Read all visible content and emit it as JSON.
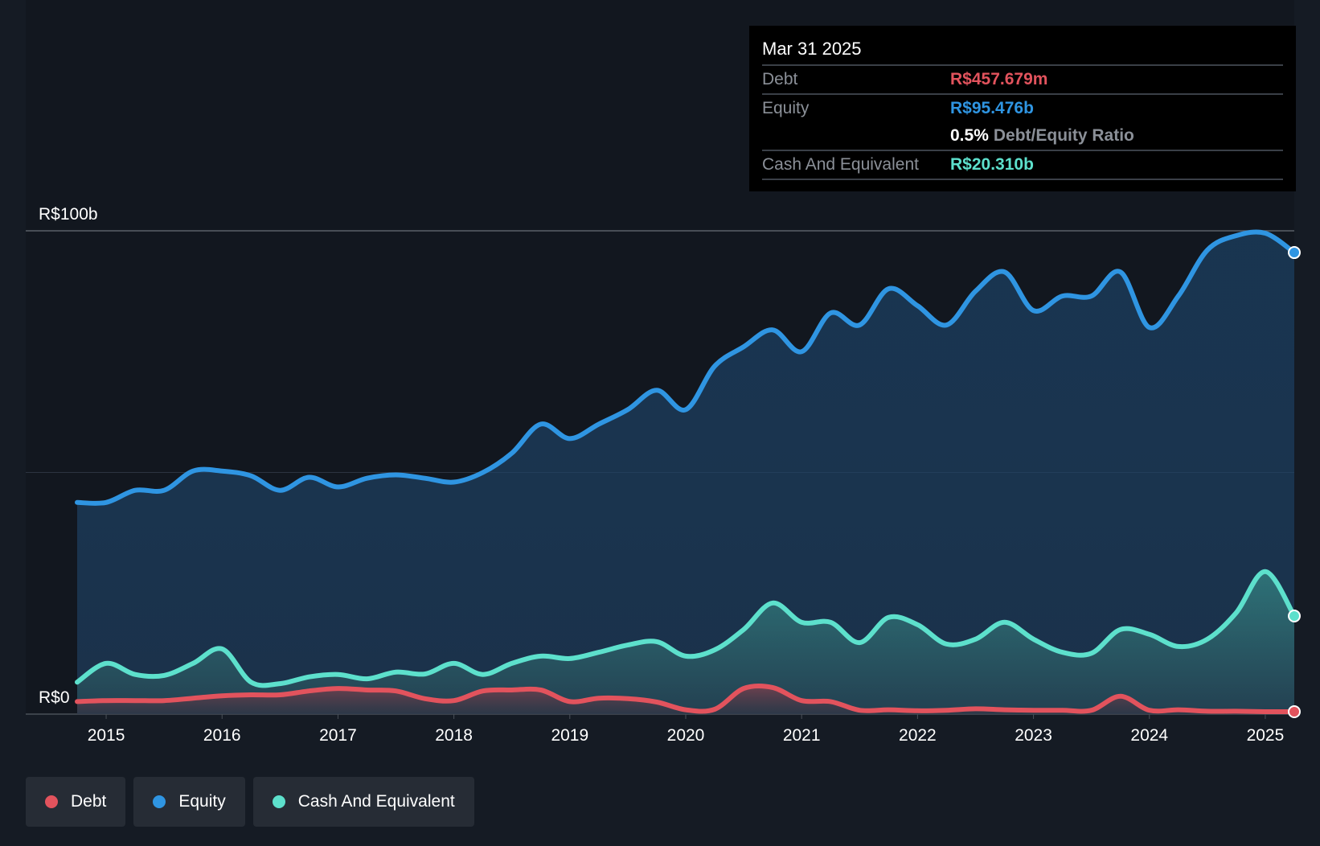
{
  "chart_data": {
    "type": "area",
    "title": "",
    "xlabel": "",
    "ylabel": "",
    "ylim": [
      0,
      100
    ],
    "y_ticks": [
      {
        "value": 0,
        "label": "R$0"
      },
      {
        "value": 50,
        "label": ""
      },
      {
        "value": 100,
        "label": "R$100b"
      }
    ],
    "x_range": [
      2014.75,
      2025.25
    ],
    "x_ticks": [
      2015,
      2016,
      2017,
      2018,
      2019,
      2020,
      2021,
      2022,
      2023,
      2024,
      2025
    ],
    "series": [
      {
        "name": "Equity",
        "color": "#2f95e2",
        "x": [
          2014.75,
          2015.0,
          2015.25,
          2015.5,
          2015.75,
          2016.0,
          2016.25,
          2016.5,
          2016.75,
          2017.0,
          2017.25,
          2017.5,
          2017.75,
          2018.0,
          2018.25,
          2018.5,
          2018.75,
          2019.0,
          2019.25,
          2019.5,
          2019.75,
          2020.0,
          2020.25,
          2020.5,
          2020.75,
          2021.0,
          2021.25,
          2021.5,
          2021.75,
          2022.0,
          2022.25,
          2022.5,
          2022.75,
          2023.0,
          2023.25,
          2023.5,
          2023.75,
          2024.0,
          2024.25,
          2024.5,
          2024.75,
          2025.0,
          2025.25
        ],
        "values": [
          43.8,
          43.8,
          46.3,
          46.3,
          50.3,
          50.3,
          49.3,
          46.3,
          49.0,
          47.0,
          48.8,
          49.5,
          48.8,
          48.0,
          50.0,
          54.0,
          60.0,
          57.0,
          60.0,
          63.0,
          67.0,
          63.0,
          72.0,
          76.0,
          79.5,
          75.0,
          83.0,
          80.5,
          88.0,
          84.5,
          80.5,
          87.5,
          91.5,
          83.5,
          86.5,
          86.5,
          91.5,
          80.0,
          86.5,
          96.0,
          99.0,
          99.5,
          95.5
        ]
      },
      {
        "name": "Cash And Equivalent",
        "color": "#5de0cc",
        "x": [
          2014.75,
          2015.0,
          2015.25,
          2015.5,
          2015.75,
          2016.0,
          2016.25,
          2016.5,
          2016.75,
          2017.0,
          2017.25,
          2017.5,
          2017.75,
          2018.0,
          2018.25,
          2018.5,
          2018.75,
          2019.0,
          2019.25,
          2019.5,
          2019.75,
          2020.0,
          2020.25,
          2020.5,
          2020.75,
          2021.0,
          2021.25,
          2021.5,
          2021.75,
          2022.0,
          2022.25,
          2022.5,
          2022.75,
          2023.0,
          2023.25,
          2023.5,
          2023.75,
          2024.0,
          2024.25,
          2024.5,
          2024.75,
          2025.0,
          2025.25
        ],
        "values": [
          6.6,
          10.5,
          8.2,
          8.0,
          10.5,
          13.5,
          6.6,
          6.3,
          7.7,
          8.2,
          7.3,
          8.7,
          8.3,
          10.5,
          8.2,
          10.5,
          12.0,
          11.5,
          12.8,
          14.3,
          15.0,
          12.0,
          13.3,
          17.5,
          23.0,
          19.0,
          19.0,
          14.8,
          20.0,
          18.5,
          14.5,
          15.5,
          19.0,
          15.5,
          12.8,
          12.6,
          17.5,
          16.5,
          14.0,
          15.5,
          21.0,
          29.5,
          20.3
        ]
      },
      {
        "name": "Debt",
        "color": "#e2535d",
        "x": [
          2014.75,
          2015.0,
          2015.25,
          2015.5,
          2015.75,
          2016.0,
          2016.25,
          2016.5,
          2016.75,
          2017.0,
          2017.25,
          2017.5,
          2017.75,
          2018.0,
          2018.25,
          2018.5,
          2018.75,
          2019.0,
          2019.25,
          2019.5,
          2019.75,
          2020.0,
          2020.25,
          2020.5,
          2020.75,
          2021.0,
          2021.25,
          2021.5,
          2021.75,
          2022.0,
          2022.25,
          2022.5,
          2022.75,
          2023.0,
          2023.25,
          2023.5,
          2023.75,
          2024.0,
          2024.25,
          2024.5,
          2024.75,
          2025.0,
          2025.25
        ],
        "values": [
          2.6,
          2.8,
          2.8,
          2.8,
          3.3,
          3.8,
          4.0,
          4.0,
          4.8,
          5.3,
          5.0,
          4.8,
          3.2,
          2.8,
          4.8,
          5.0,
          5.0,
          2.6,
          3.3,
          3.2,
          2.5,
          0.9,
          1.0,
          5.3,
          5.5,
          2.8,
          2.6,
          0.8,
          0.9,
          0.7,
          0.8,
          1.1,
          0.9,
          0.8,
          0.8,
          0.8,
          3.7,
          0.8,
          0.9,
          0.6,
          0.6,
          0.5,
          0.5
        ]
      }
    ],
    "tooltip": {
      "date": "Mar 31 2025",
      "rows": [
        {
          "label": "Debt",
          "value": "R$457.679m",
          "color": "#e2535d"
        },
        {
          "label": "Equity",
          "value": "R$95.476b",
          "color": "#2f95e2"
        },
        {
          "label": "",
          "ratio_value": "0.5%",
          "ratio_label": "Debt/Equity Ratio"
        },
        {
          "label": "Cash And Equivalent",
          "value": "R$20.310b",
          "color": "#5de0cc"
        }
      ]
    },
    "legend": [
      {
        "name": "Debt",
        "color": "#e2535d"
      },
      {
        "name": "Equity",
        "color": "#2f95e2"
      },
      {
        "name": "Cash And Equivalent",
        "color": "#5de0cc"
      }
    ]
  }
}
